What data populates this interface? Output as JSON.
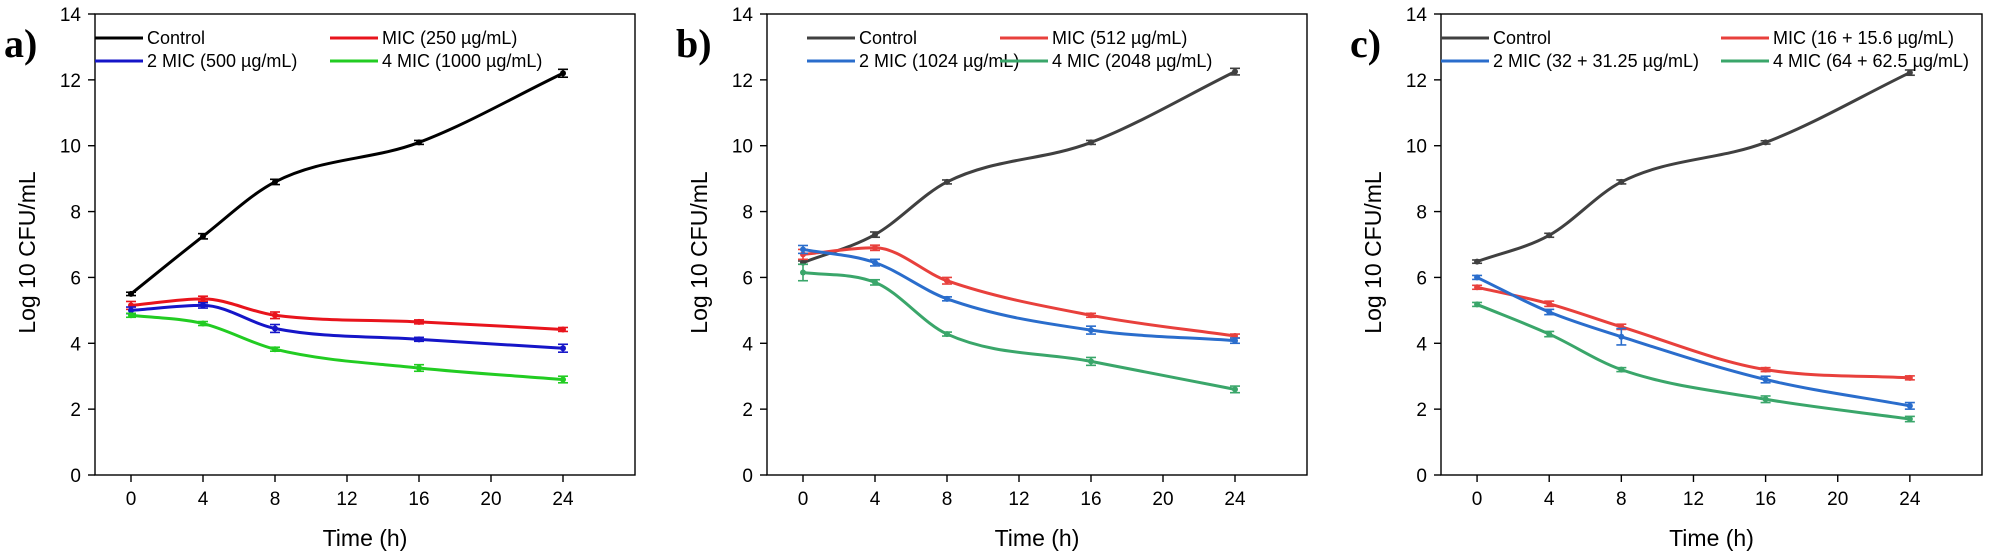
{
  "chart_data": [
    {
      "panel_label": "a)",
      "type": "line",
      "xlabel": "Time (h)",
      "ylabel": "Log 10 CFU/mL",
      "xlim": [
        -2,
        28
      ],
      "ylim": [
        0,
        14
      ],
      "xticks": [
        0,
        4,
        8,
        12,
        16,
        20,
        24
      ],
      "yticks": [
        0,
        2,
        4,
        6,
        8,
        10,
        12,
        14
      ],
      "x": [
        0,
        4,
        8,
        16,
        24
      ],
      "series": [
        {
          "name": "Control",
          "color": "#000000",
          "values": [
            5.5,
            7.25,
            8.9,
            10.1,
            12.2
          ],
          "errors": [
            0.05,
            0.08,
            0.08,
            0.06,
            0.12
          ]
        },
        {
          "name": "MIC (250 µg/mL)",
          "color": "#e8141c",
          "values": [
            5.15,
            5.35,
            4.85,
            4.65,
            4.42
          ],
          "errors": [
            0.12,
            0.08,
            0.1,
            0.06,
            0.06
          ]
        },
        {
          "name": "2 MIC (500 µg/mL)",
          "color": "#1515c8",
          "values": [
            5.0,
            5.15,
            4.45,
            4.12,
            3.85
          ],
          "errors": [
            0.1,
            0.08,
            0.12,
            0.06,
            0.12
          ]
        },
        {
          "name": "4 MIC (1000 µg/mL)",
          "color": "#22cc22",
          "values": [
            4.85,
            4.6,
            3.82,
            3.25,
            2.9
          ],
          "errors": [
            0.06,
            0.06,
            0.06,
            0.1,
            0.1
          ]
        }
      ]
    },
    {
      "panel_label": "b)",
      "type": "line",
      "xlabel": "Time (h)",
      "ylabel": "Log 10 CFU/mL",
      "xlim": [
        -2,
        28
      ],
      "ylim": [
        0,
        14
      ],
      "xticks": [
        0,
        4,
        8,
        12,
        16,
        20,
        24
      ],
      "yticks": [
        0,
        2,
        4,
        6,
        8,
        10,
        12,
        14
      ],
      "x": [
        0,
        4,
        8,
        16,
        24
      ],
      "series": [
        {
          "name": "Control",
          "color": "#404040",
          "values": [
            6.45,
            7.3,
            8.9,
            10.1,
            12.25
          ],
          "errors": [
            0.05,
            0.08,
            0.06,
            0.06,
            0.1
          ]
        },
        {
          "name": "MIC (512 µg/mL)",
          "color": "#e8403c",
          "values": [
            6.7,
            6.9,
            5.9,
            4.85,
            4.22
          ],
          "errors": [
            0.15,
            0.08,
            0.1,
            0.06,
            0.06
          ]
        },
        {
          "name": "2 MIC (1024 µg/mL)",
          "color": "#2a6dcc",
          "values": [
            6.85,
            6.45,
            5.35,
            4.4,
            4.08
          ],
          "errors": [
            0.12,
            0.1,
            0.06,
            0.12,
            0.08
          ]
        },
        {
          "name": "4 MIC (2048 µg/mL)",
          "color": "#3aa66a",
          "values": [
            6.15,
            5.85,
            4.28,
            3.45,
            2.6
          ],
          "errors": [
            0.25,
            0.08,
            0.06,
            0.12,
            0.1
          ]
        }
      ]
    },
    {
      "panel_label": "c)",
      "type": "line",
      "xlabel": "Time (h)",
      "ylabel": "Log 10 CFU/mL",
      "xlim": [
        -2,
        28
      ],
      "ylim": [
        0,
        14
      ],
      "xticks": [
        0,
        4,
        8,
        12,
        16,
        20,
        24
      ],
      "yticks": [
        0,
        2,
        4,
        6,
        8,
        10,
        12,
        14
      ],
      "x": [
        0,
        4,
        8,
        16,
        24
      ],
      "series": [
        {
          "name": "Control",
          "color": "#404040",
          "values": [
            6.48,
            7.28,
            8.9,
            10.1,
            12.22
          ],
          "errors": [
            0.05,
            0.06,
            0.06,
            0.05,
            0.08
          ]
        },
        {
          "name": "MIC (16 + 15.6 µg/mL)",
          "color": "#e8403c",
          "values": [
            5.7,
            5.2,
            4.5,
            3.2,
            2.95
          ],
          "errors": [
            0.06,
            0.08,
            0.08,
            0.06,
            0.06
          ]
        },
        {
          "name": "2 MIC (32 + 31.25 µg/mL)",
          "color": "#2a6dcc",
          "values": [
            6.0,
            4.95,
            4.2,
            2.9,
            2.1
          ],
          "errors": [
            0.06,
            0.08,
            0.25,
            0.1,
            0.1
          ]
        },
        {
          "name": "4 MIC (64 + 62.5 µg/mL)",
          "color": "#3aa66a",
          "values": [
            5.18,
            4.28,
            3.2,
            2.3,
            1.7
          ],
          "errors": [
            0.06,
            0.08,
            0.06,
            0.1,
            0.08
          ]
        }
      ]
    }
  ]
}
